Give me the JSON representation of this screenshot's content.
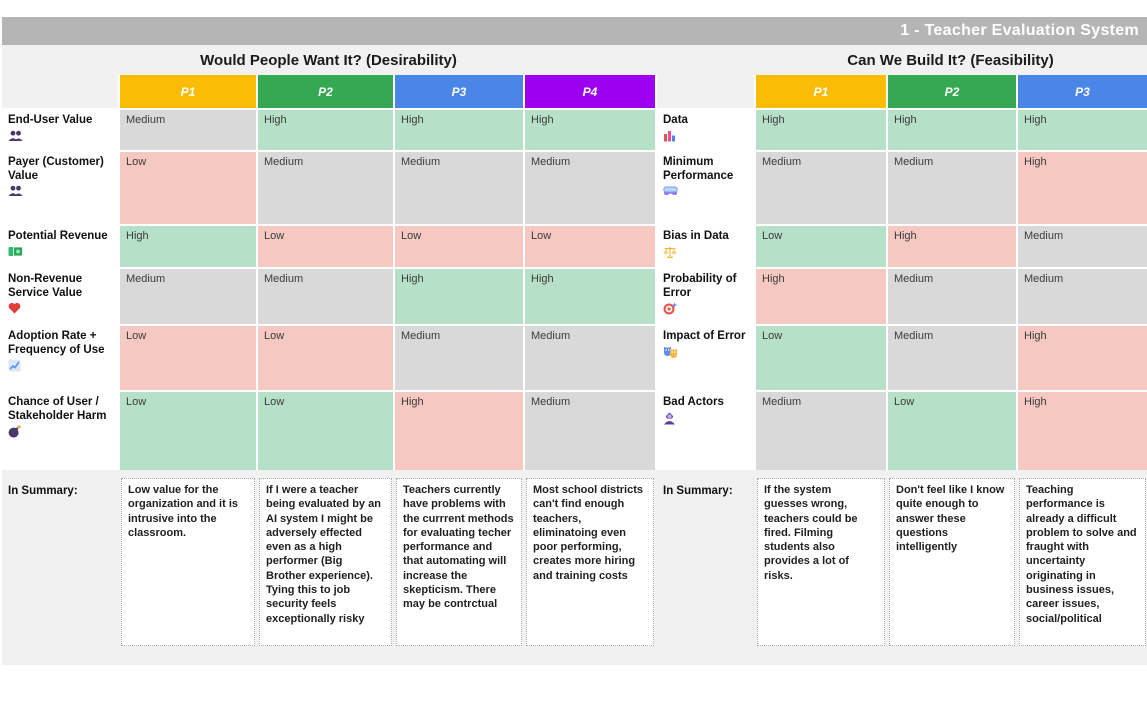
{
  "title": "1 - Teacher Evaluation System",
  "colors": {
    "title_bar": "#b5b5b5",
    "sheet_bg": "#f1f1f1",
    "levels": {
      "good": "#b7e0c9",
      "bad": "#f5c8c2",
      "neutral": "#d9d9d9"
    }
  },
  "sections": [
    {
      "title": "Would People Want It? (Desirability)",
      "columns": [
        {
          "label": "P1",
          "color": "#fbbc05"
        },
        {
          "label": "P2",
          "color": "#34a853"
        },
        {
          "label": "P3",
          "color": "#4a86e8"
        },
        {
          "label": "P4",
          "color": "#9d00f0"
        }
      ]
    },
    {
      "title": "Can We Build It? (Feasibility)",
      "columns": [
        {
          "label": "P1",
          "color": "#fbbc05"
        },
        {
          "label": "P2",
          "color": "#34a853"
        },
        {
          "label": "P3",
          "color": "#4a86e8"
        }
      ]
    }
  ],
  "rows": [
    {
      "desirability_label": "End-User Value",
      "desirability_icon": "people-icon",
      "desirability_values": [
        {
          "text": "Medium",
          "level": "neutral"
        },
        {
          "text": "High",
          "level": "good"
        },
        {
          "text": "High",
          "level": "good"
        },
        {
          "text": "High",
          "level": "good"
        }
      ],
      "feasibility_label": "Data",
      "feasibility_icon": "bar-chart-icon",
      "feasibility_values": [
        {
          "text": "High",
          "level": "good"
        },
        {
          "text": "High",
          "level": "good"
        },
        {
          "text": "High",
          "level": "good"
        }
      ]
    },
    {
      "desirability_label": "Payer (Customer) Value",
      "desirability_icon": "people-icon",
      "desirability_values": [
        {
          "text": "Low",
          "level": "bad"
        },
        {
          "text": "Medium",
          "level": "neutral"
        },
        {
          "text": "Medium",
          "level": "neutral"
        },
        {
          "text": "Medium",
          "level": "neutral"
        }
      ],
      "feasibility_label": "Minimum Performance",
      "feasibility_icon": "goggles-icon",
      "feasibility_values": [
        {
          "text": "Medium",
          "level": "neutral"
        },
        {
          "text": "Medium",
          "level": "neutral"
        },
        {
          "text": "High",
          "level": "bad"
        }
      ]
    },
    {
      "desirability_label": "Potential Revenue",
      "desirability_icon": "banknote-icon",
      "desirability_values": [
        {
          "text": "High",
          "level": "good"
        },
        {
          "text": "Low",
          "level": "bad"
        },
        {
          "text": "Low",
          "level": "bad"
        },
        {
          "text": "Low",
          "level": "bad"
        }
      ],
      "feasibility_label": "Bias in Data",
      "feasibility_icon": "scale-icon",
      "feasibility_values": [
        {
          "text": "Low",
          "level": "good"
        },
        {
          "text": "High",
          "level": "bad"
        },
        {
          "text": "Medium",
          "level": "neutral"
        }
      ]
    },
    {
      "desirability_label": "Non-Revenue Service Value",
      "desirability_icon": "heart-icon",
      "desirability_values": [
        {
          "text": "Medium",
          "level": "neutral"
        },
        {
          "text": "Medium",
          "level": "neutral"
        },
        {
          "text": "High",
          "level": "good"
        },
        {
          "text": "High",
          "level": "good"
        }
      ],
      "feasibility_label": "Probability of Error",
      "feasibility_icon": "target-icon",
      "feasibility_values": [
        {
          "text": "High",
          "level": "bad"
        },
        {
          "text": "Medium",
          "level": "neutral"
        },
        {
          "text": "Medium",
          "level": "neutral"
        }
      ]
    },
    {
      "desirability_label": "Adoption Rate + Frequency of Use",
      "desirability_icon": "chart-up-icon",
      "desirability_values": [
        {
          "text": "Low",
          "level": "bad"
        },
        {
          "text": "Low",
          "level": "bad"
        },
        {
          "text": "Medium",
          "level": "neutral"
        },
        {
          "text": "Medium",
          "level": "neutral"
        }
      ],
      "feasibility_label": "Impact of Error",
      "feasibility_icon": "masks-icon",
      "feasibility_values": [
        {
          "text": "Low",
          "level": "good"
        },
        {
          "text": "Medium",
          "level": "neutral"
        },
        {
          "text": "High",
          "level": "bad"
        }
      ]
    },
    {
      "desirability_label": "Chance of User / Stakeholder Harm",
      "desirability_icon": "bomb-icon",
      "desirability_values": [
        {
          "text": "Low",
          "level": "good"
        },
        {
          "text": "Low",
          "level": "good"
        },
        {
          "text": "High",
          "level": "bad"
        },
        {
          "text": "Medium",
          "level": "neutral"
        }
      ],
      "feasibility_label": "Bad Actors",
      "feasibility_icon": "villain-icon",
      "feasibility_values": [
        {
          "text": "Medium",
          "level": "neutral"
        },
        {
          "text": "Low",
          "level": "good"
        },
        {
          "text": "High",
          "level": "bad"
        }
      ]
    }
  ],
  "summary": {
    "label": "In Summary:",
    "desirability": [
      "Low value for the organization and it is intrusive into the classroom.",
      "If I were a teacher being evaluated by an AI system I might be adversely effected even as a high performer (Big Brother experience). Tying this to job security feels exceptionally risky",
      "Teachers currently have problems with the currrent methods for evaluating techer performance and that automating will increase the skepticism. There may be contrctual",
      "Most school districts can't find enough teachers, eliminatoing even poor performing, creates more hiring and training costs"
    ],
    "feasibility": [
      "If the system guesses wrong, teachers could be fired. Filming students also provides a lot of risks.",
      "Don't feel like I know quite enough to answer these questions intelligently",
      "Teaching performance is already a difficult problem to solve and fraught with uncertainty originating in business issues, career issues, social/political"
    ]
  }
}
